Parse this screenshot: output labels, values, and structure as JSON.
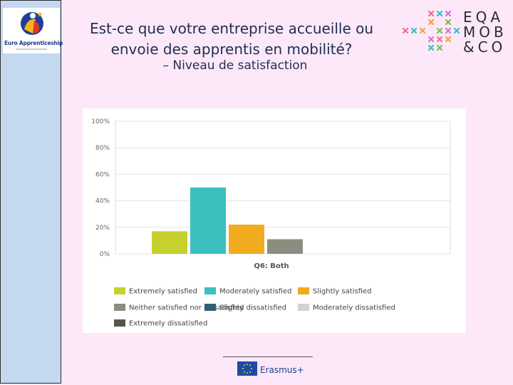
{
  "slide": {
    "title": "Est-ce que votre entreprise accueille ou envoie des apprentis en mobilité?",
    "subtitle": "– Niveau de satisfaction"
  },
  "logos": {
    "left_brand": "Euro Apprenticeship",
    "right_brand_lines": [
      "EQA",
      "MOB",
      "&CO"
    ]
  },
  "footer": {
    "program": "Erasmus+"
  },
  "colors": {
    "background": "#fce8f8",
    "sidebar": "#c4d8ef",
    "title": "#1f2f52"
  },
  "chart_data": {
    "type": "bar",
    "title": "",
    "xlabel": "Q6: Both",
    "ylabel": "",
    "ylim": [
      0,
      100
    ],
    "yticks": [
      "0%",
      "20%",
      "40%",
      "60%",
      "80%",
      "100%"
    ],
    "yticks_values": [
      0,
      20,
      40,
      60,
      80,
      100
    ],
    "grid": true,
    "legend_position": "bottom",
    "series": [
      {
        "name": "Extremely satisfied",
        "value": 17,
        "color": "#c6d12e"
      },
      {
        "name": "Moderately satisfied",
        "value": 50,
        "color": "#3cbfbf"
      },
      {
        "name": "Slightly satisfied",
        "value": 22,
        "color": "#f0ab1f"
      },
      {
        "name": "Neither satisfied nor dissatisfied",
        "value": 11,
        "color": "#8c8c80"
      },
      {
        "name": "Slighty dissatisfied",
        "value": 0,
        "color": "#2f5f6e"
      },
      {
        "name": "Moderately dissatisfied",
        "value": 0,
        "color": "#d3d3c9"
      },
      {
        "name": "Extremely dissatisfied",
        "value": 0,
        "color": "#56564a"
      }
    ]
  }
}
